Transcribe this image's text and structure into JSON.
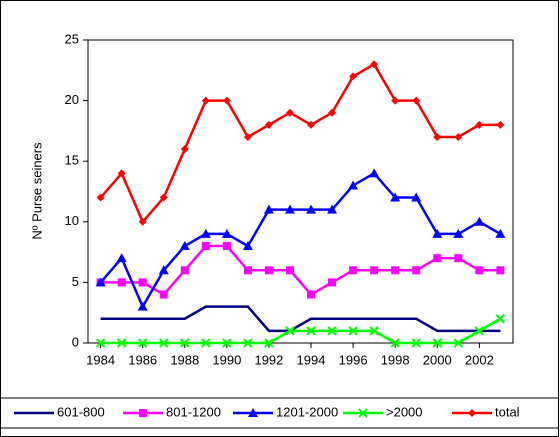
{
  "chart_data": {
    "type": "line",
    "ylabel": "Nº Purse seiners",
    "x": [
      1984,
      1985,
      1986,
      1987,
      1988,
      1989,
      1990,
      1991,
      1992,
      1993,
      1994,
      1995,
      1996,
      1997,
      1998,
      1999,
      2000,
      2001,
      2002,
      2003
    ],
    "xlim": [
      1983.4,
      2003.6
    ],
    "xticks": [
      1984,
      1986,
      1988,
      1990,
      1992,
      1994,
      1996,
      1998,
      2000,
      2002
    ],
    "ylim": [
      0,
      25
    ],
    "yticks": [
      0,
      5,
      10,
      15,
      20,
      25
    ],
    "legend": "bottom",
    "series": [
      {
        "name": "601-800",
        "color": "#000080",
        "marker": "none",
        "values": [
          2,
          2,
          2,
          2,
          2,
          3,
          3,
          3,
          1,
          1,
          2,
          2,
          2,
          2,
          2,
          2,
          1,
          1,
          1,
          1
        ]
      },
      {
        "name": "801-1200",
        "color": "#ff00ff",
        "marker": "square",
        "values": [
          5,
          5,
          5,
          4,
          6,
          8,
          8,
          6,
          6,
          6,
          4,
          5,
          6,
          6,
          6,
          6,
          7,
          7,
          6,
          6
        ]
      },
      {
        "name": "1201-2000",
        "color": "#0000ff",
        "marker": "triangle",
        "values": [
          5,
          7,
          3,
          6,
          8,
          9,
          9,
          8,
          11,
          11,
          11,
          11,
          13,
          14,
          12,
          12,
          9,
          9,
          10,
          9
        ]
      },
      {
        "name": ">2000",
        "color": "#00ff00",
        "marker": "x",
        "values": [
          0,
          0,
          0,
          0,
          0,
          0,
          0,
          0,
          0,
          1,
          1,
          1,
          1,
          1,
          0,
          0,
          0,
          0,
          1,
          2
        ]
      },
      {
        "name": "total",
        "color": "#ff0000",
        "marker": "diamond",
        "values": [
          12,
          14,
          10,
          12,
          16,
          20,
          20,
          17,
          18,
          19,
          18,
          19,
          22,
          23,
          20,
          20,
          17,
          17,
          18,
          18
        ]
      }
    ]
  }
}
